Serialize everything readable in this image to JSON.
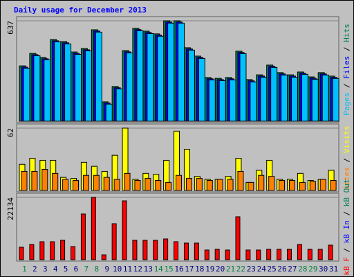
{
  "title": "Daily usage for December 2013",
  "chart_data": [
    {
      "type": "bar",
      "ylim": [
        0,
        637
      ],
      "yticks": [
        637
      ],
      "legend_separator": " / ",
      "series": [
        {
          "name": "Hits",
          "color": "#00805c",
          "values": [
            351,
            430,
            404,
            518,
            505,
            439,
            461,
            580,
            123,
            220,
            448,
            589,
            571,
            554,
            637,
            637,
            466,
            413,
            277,
            272,
            277,
            444,
            264,
            294,
            356,
            308,
            294,
            312,
            281,
            308,
            286
          ]
        },
        {
          "name": "Files",
          "color": "#0000ff",
          "values": [
            343,
            422,
            396,
            510,
            497,
            431,
            453,
            572,
            115,
            212,
            440,
            581,
            563,
            546,
            629,
            629,
            458,
            405,
            269,
            264,
            269,
            436,
            256,
            286,
            348,
            300,
            286,
            304,
            273,
            300,
            278
          ]
        },
        {
          "name": "Pages",
          "color": "#00c0ff",
          "values": [
            336,
            415,
            389,
            503,
            490,
            424,
            446,
            565,
            108,
            205,
            433,
            574,
            556,
            539,
            622,
            622,
            451,
            398,
            262,
            257,
            262,
            429,
            249,
            279,
            341,
            293,
            279,
            297,
            266,
            293,
            271
          ]
        }
      ]
    },
    {
      "type": "bar",
      "ylim": [
        0,
        62
      ],
      "yticks": [
        62
      ],
      "legend_separator": " / ",
      "series": [
        {
          "name": "Visits",
          "color": "#ffff00",
          "values": [
            26,
            32,
            30,
            30,
            13,
            12,
            28,
            24,
            19,
            35,
            62,
            11,
            17,
            16,
            30,
            59,
            41,
            14,
            11,
            11,
            14,
            32,
            8,
            20,
            30,
            11,
            11,
            17,
            10,
            11,
            20
          ]
        },
        {
          "name": "Sites",
          "color": "#ff8000",
          "values": [
            19,
            19,
            21,
            17,
            11,
            10,
            15,
            15,
            13,
            11,
            17,
            10,
            12,
            10,
            8,
            15,
            12,
            12,
            10,
            11,
            11,
            19,
            8,
            15,
            14,
            10,
            10,
            8,
            9,
            11,
            10
          ]
        }
      ]
    },
    {
      "type": "bar",
      "ylim": [
        0,
        22134
      ],
      "yticks": [
        22134
      ],
      "legend_separator": " / ",
      "categories": [
        "1",
        "2",
        "3",
        "4",
        "5",
        "6",
        "7",
        "8",
        "9",
        "10",
        "11",
        "12",
        "13",
        "14",
        "15",
        "16",
        "17",
        "18",
        "19",
        "20",
        "21",
        "22",
        "23",
        "24",
        "25",
        "26",
        "27",
        "28",
        "29",
        "30",
        "31"
      ],
      "category_colors": [
        "#008040",
        "#000080",
        "#000080",
        "#000080",
        "#000080",
        "#000080",
        "#008040",
        "#008040",
        "#000080",
        "#000080",
        "#000080",
        "#000080",
        "#000080",
        "#008040",
        "#008040",
        "#000080",
        "#000080",
        "#000080",
        "#000080",
        "#000080",
        "#008040",
        "#008040",
        "#000080",
        "#000080",
        "#000080",
        "#000080",
        "#000080",
        "#008040",
        "#008040",
        "#000080",
        "#000080"
      ],
      "series": [
        {
          "name": "kB Out",
          "color": "#00805c",
          "values": [
            0,
            0,
            0,
            0,
            0,
            0,
            0,
            0,
            0,
            0,
            0,
            0,
            0,
            0,
            0,
            0,
            0,
            0,
            0,
            0,
            0,
            0,
            0,
            0,
            0,
            0,
            0,
            0,
            0,
            0,
            0
          ]
        },
        {
          "name": "kB In",
          "color": "#0000ff",
          "values": [
            0,
            0,
            0,
            0,
            0,
            0,
            0,
            0,
            0,
            0,
            0,
            0,
            0,
            0,
            0,
            0,
            0,
            0,
            0,
            0,
            0,
            0,
            0,
            0,
            0,
            0,
            0,
            0,
            0,
            0,
            0
          ]
        },
        {
          "name": "kB F",
          "color": "#ff0000",
          "values": [
            4427,
            5410,
            6394,
            6394,
            6886,
            4673,
            16231,
            22134,
            1722,
            12788,
            20904,
            6886,
            6886,
            6886,
            7378,
            6394,
            5902,
            5902,
            3443,
            3689,
            3443,
            15247,
            3443,
            3443,
            3689,
            3689,
            3689,
            5410,
            3689,
            3689,
            5164
          ]
        }
      ]
    }
  ]
}
